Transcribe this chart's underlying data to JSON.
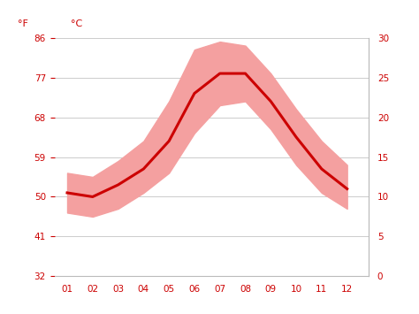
{
  "months": [
    1,
    2,
    3,
    4,
    5,
    6,
    7,
    8,
    9,
    10,
    11,
    12
  ],
  "month_labels": [
    "01",
    "02",
    "03",
    "04",
    "05",
    "06",
    "07",
    "08",
    "09",
    "10",
    "11",
    "12"
  ],
  "avg_temp_c": [
    10.5,
    10.0,
    11.5,
    13.5,
    17.0,
    23.0,
    25.5,
    25.5,
    22.0,
    17.5,
    13.5,
    11.0
  ],
  "temp_max_c": [
    13.0,
    12.5,
    14.5,
    17.0,
    22.0,
    28.5,
    29.5,
    29.0,
    25.5,
    21.0,
    17.0,
    14.0
  ],
  "temp_min_c": [
    8.0,
    7.5,
    8.5,
    10.5,
    13.0,
    18.0,
    21.5,
    22.0,
    18.5,
    14.0,
    10.5,
    8.5
  ],
  "ylim_c": [
    0,
    30
  ],
  "yticks_c": [
    0,
    5,
    10,
    15,
    20,
    25,
    30
  ],
  "yticks_f": [
    32,
    41,
    50,
    59,
    68,
    77,
    86
  ],
  "line_color": "#cc0000",
  "band_color": "#f4a0a0",
  "grid_color": "#cccccc",
  "axis_label_color": "#cc0000",
  "bg_color": "#ffffff",
  "font_size_ticks": 7.5,
  "label_left_f": "°F",
  "label_right_c": "°C",
  "xlim": [
    0.5,
    12.85
  ],
  "right_spine_color": "#bbbbbb",
  "bottom_spine_color": "#bbbbbb"
}
